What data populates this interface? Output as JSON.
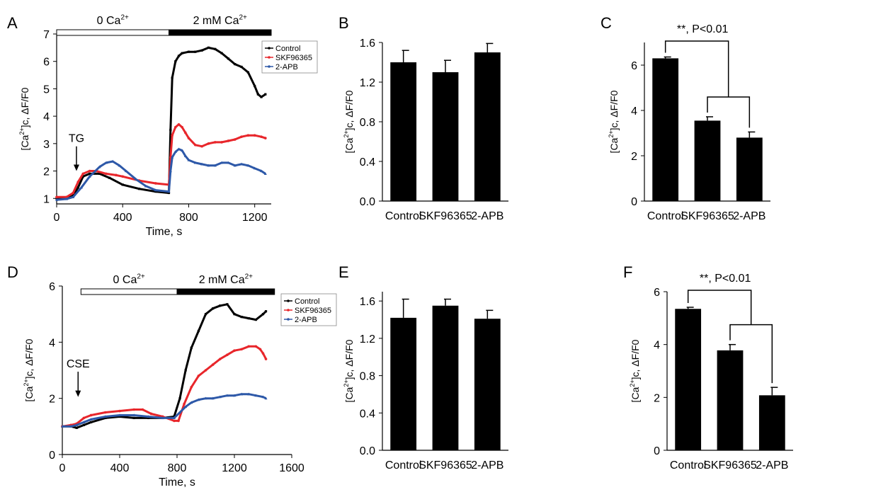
{
  "chart_data": [
    {
      "panel": "A",
      "type": "line",
      "xlabel": "Time, s",
      "ylabel_main": "[Ca",
      "ylabel_sup": "2+",
      "ylabel_tail": "]c, ΔF/F0",
      "xlim": [
        0,
        1300
      ],
      "ylim": [
        0.8,
        7
      ],
      "xticks": [
        0,
        400,
        800,
        1200
      ],
      "yticks": [
        1,
        2,
        3,
        4,
        5,
        6,
        7
      ],
      "legend": "top-right",
      "series": [
        {
          "name": "Control",
          "color": "#000000",
          "marker": "square",
          "x": [
            0,
            60,
            100,
            130,
            160,
            200,
            260,
            320,
            400,
            500,
            600,
            680,
            690,
            700,
            720,
            740,
            760,
            800,
            840,
            880,
            920,
            960,
            1000,
            1040,
            1080,
            1120,
            1160,
            1200,
            1220,
            1240,
            1265
          ],
          "y": [
            1.0,
            1.0,
            1.1,
            1.4,
            1.8,
            1.9,
            1.9,
            1.75,
            1.5,
            1.35,
            1.25,
            1.2,
            3.5,
            5.4,
            6.0,
            6.2,
            6.3,
            6.35,
            6.35,
            6.4,
            6.5,
            6.45,
            6.3,
            6.1,
            5.9,
            5.8,
            5.6,
            5.1,
            4.8,
            4.7,
            4.8
          ]
        },
        {
          "name": "SKF96365",
          "color": "#e8262b",
          "marker": "circle",
          "x": [
            0,
            60,
            100,
            130,
            160,
            200,
            240,
            300,
            360,
            400,
            500,
            600,
            680,
            690,
            700,
            720,
            740,
            760,
            780,
            800,
            840,
            880,
            920,
            960,
            1000,
            1040,
            1080,
            1120,
            1160,
            1200,
            1240,
            1265
          ],
          "y": [
            1.05,
            1.05,
            1.2,
            1.6,
            1.9,
            2.0,
            2.0,
            1.9,
            1.85,
            1.8,
            1.65,
            1.55,
            1.5,
            2.5,
            3.3,
            3.6,
            3.7,
            3.6,
            3.4,
            3.2,
            2.95,
            2.9,
            3.0,
            3.05,
            3.05,
            3.1,
            3.15,
            3.25,
            3.3,
            3.3,
            3.25,
            3.2
          ]
        },
        {
          "name": "2-APB",
          "color": "#2d58a8",
          "marker": "triangle",
          "x": [
            0,
            60,
            100,
            150,
            200,
            260,
            300,
            340,
            380,
            420,
            480,
            540,
            600,
            680,
            690,
            700,
            720,
            740,
            760,
            780,
            800,
            840,
            880,
            920,
            960,
            1000,
            1040,
            1080,
            1120,
            1160,
            1200,
            1240,
            1265
          ],
          "y": [
            0.95,
            0.98,
            1.05,
            1.4,
            1.8,
            2.15,
            2.3,
            2.35,
            2.2,
            2.0,
            1.7,
            1.45,
            1.3,
            1.25,
            2.0,
            2.5,
            2.7,
            2.8,
            2.75,
            2.55,
            2.4,
            2.3,
            2.25,
            2.2,
            2.2,
            2.3,
            2.3,
            2.2,
            2.25,
            2.2,
            2.1,
            2.0,
            1.9
          ]
        }
      ],
      "annotations": [
        {
          "label": "TG",
          "x": 120,
          "y": 1.8
        }
      ],
      "bars": [
        {
          "label_main": "0 Ca",
          "label_sup": "2+",
          "from": 0,
          "to": 680,
          "fill": "#ffffff"
        },
        {
          "label_main": "2 mM Ca",
          "label_sup": "2+",
          "from": 680,
          "to": 1300,
          "fill": "#000000"
        }
      ]
    },
    {
      "panel": "B",
      "type": "bar",
      "categories": [
        "Control",
        "SKF96365",
        "2-APB"
      ],
      "values": [
        1.4,
        1.3,
        1.5
      ],
      "errors": [
        0.12,
        0.12,
        0.09
      ],
      "ylabel_main": "[Ca",
      "ylabel_sup": "2+",
      "ylabel_tail": "]c, ΔF/F0",
      "ylim": [
        0,
        1.6
      ],
      "yticks": [
        "0.0",
        "0.4",
        "0.8",
        "1.2",
        "1.6"
      ]
    },
    {
      "panel": "C",
      "type": "bar",
      "categories": [
        "Control",
        "SKF96365",
        "2-APB"
      ],
      "values": [
        6.3,
        3.55,
        2.8
      ],
      "errors": [
        0.06,
        0.17,
        0.25
      ],
      "ylabel_main": "[Ca",
      "ylabel_sup": "2+",
      "ylabel_tail": "]c, ΔF/F0",
      "ylim": [
        0,
        7
      ],
      "yticks": [
        "0",
        "2",
        "4",
        "6"
      ],
      "significance": "**, P<0.01"
    },
    {
      "panel": "D",
      "type": "line",
      "xlabel": "Time, s",
      "ylabel_main": "[Ca",
      "ylabel_sup": "2+",
      "ylabel_tail": "]c, ΔF/F0",
      "xlim": [
        0,
        1600
      ],
      "ylim": [
        0,
        6
      ],
      "xticks": [
        0,
        400,
        800,
        1200,
        1600
      ],
      "yticks": [
        0,
        2,
        4,
        6
      ],
      "legend": "top-right",
      "series": [
        {
          "name": "Control",
          "color": "#000000",
          "marker": "square",
          "x": [
            0,
            60,
            100,
            150,
            200,
            300,
            400,
            500,
            600,
            700,
            780,
            820,
            860,
            900,
            950,
            1000,
            1050,
            1100,
            1150,
            1200,
            1250,
            1300,
            1350,
            1400,
            1420
          ],
          "y": [
            1.0,
            1.0,
            0.95,
            1.05,
            1.15,
            1.3,
            1.35,
            1.3,
            1.3,
            1.3,
            1.35,
            2.0,
            3.0,
            3.8,
            4.4,
            5.0,
            5.2,
            5.3,
            5.35,
            5.0,
            4.9,
            4.85,
            4.8,
            5.0,
            5.1
          ]
        },
        {
          "name": "SKF96365",
          "color": "#e8262b",
          "marker": "circle",
          "x": [
            0,
            60,
            100,
            150,
            200,
            300,
            400,
            500,
            560,
            620,
            700,
            780,
            810,
            850,
            900,
            950,
            1000,
            1050,
            1100,
            1150,
            1200,
            1250,
            1300,
            1350,
            1380,
            1400,
            1420
          ],
          "y": [
            1.0,
            1.05,
            1.1,
            1.3,
            1.4,
            1.5,
            1.55,
            1.6,
            1.6,
            1.45,
            1.35,
            1.2,
            1.2,
            1.8,
            2.4,
            2.8,
            3.0,
            3.2,
            3.4,
            3.55,
            3.7,
            3.75,
            3.85,
            3.85,
            3.75,
            3.6,
            3.4
          ]
        },
        {
          "name": "2-APB",
          "color": "#2d58a8",
          "marker": "triangle",
          "x": [
            0,
            60,
            100,
            150,
            200,
            300,
            400,
            500,
            600,
            700,
            780,
            820,
            860,
            900,
            950,
            1000,
            1050,
            1100,
            1150,
            1200,
            1250,
            1300,
            1350,
            1400,
            1420
          ],
          "y": [
            1.0,
            1.0,
            1.05,
            1.15,
            1.25,
            1.35,
            1.4,
            1.4,
            1.35,
            1.3,
            1.3,
            1.5,
            1.7,
            1.85,
            1.95,
            2.0,
            2.0,
            2.05,
            2.1,
            2.1,
            2.15,
            2.15,
            2.1,
            2.05,
            2.0
          ]
        }
      ],
      "annotations": [
        {
          "label": "CSE",
          "x": 110,
          "y": 1.85
        }
      ],
      "bars": [
        {
          "label_main": "0 Ca",
          "label_sup": "2+",
          "from": 130,
          "to": 800,
          "fill": "#ffffff"
        },
        {
          "label_main": "2 mM Ca",
          "label_sup": "2+",
          "from": 800,
          "to": 1480,
          "fill": "#000000"
        }
      ]
    },
    {
      "panel": "E",
      "type": "bar",
      "categories": [
        "Control",
        "SKF96365",
        "2-APB"
      ],
      "values": [
        1.42,
        1.55,
        1.41
      ],
      "errors": [
        0.2,
        0.07,
        0.09
      ],
      "ylabel_main": "[Ca",
      "ylabel_sup": "2+",
      "ylabel_tail": "]c, ΔF/F0",
      "ylim": [
        0,
        1.7
      ],
      "yticks": [
        "0.0",
        "0.4",
        "0.8",
        "1.2",
        "1.6"
      ]
    },
    {
      "panel": "F",
      "type": "bar",
      "categories": [
        "Control",
        "SKF96365",
        "2-APB"
      ],
      "values": [
        5.35,
        3.78,
        2.08
      ],
      "errors": [
        0.06,
        0.22,
        0.3
      ],
      "ylabel_main": "[Ca",
      "ylabel_sup": "2+",
      "ylabel_tail": "]c, ΔF/F0",
      "ylim": [
        0,
        6
      ],
      "yticks": [
        "0",
        "2",
        "4",
        "6"
      ],
      "significance": "**, P<0.01"
    }
  ]
}
